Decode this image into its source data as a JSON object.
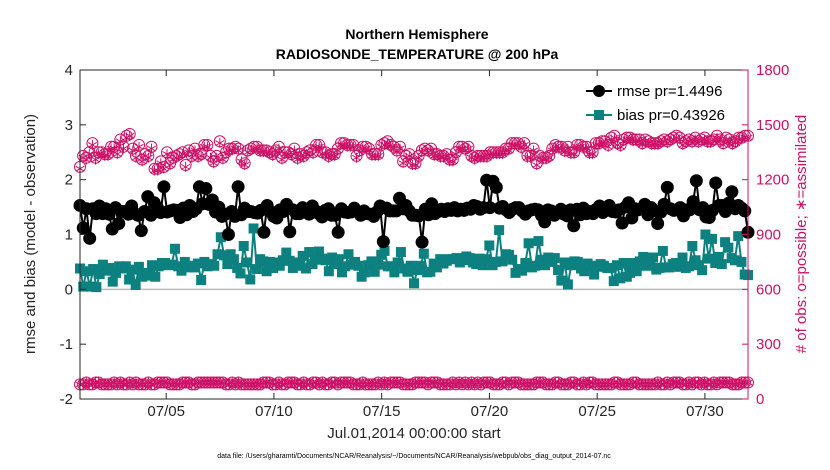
{
  "chart_data": {
    "type": "line",
    "title": "Northern Hemisphere",
    "subtitle": "RADIOSONDE_TEMPERATURE @ 200 hPa",
    "xlabel": "Jul.01,2014 00:00:00 start",
    "ylabel_left": "rmse and bias (model - observation)",
    "ylabel_right": "# of obs: o=possible; ∗=assimilated",
    "footnote": "data file: /Users/gharamti/Documents/NCAR/Reanalysis/~/Documents/NCAR/Reanalysis/webpub/obs_diag_output_2014-07.nc",
    "x_range": [
      1,
      32
    ],
    "xticks": [
      {
        "value": 5,
        "label": "07/05"
      },
      {
        "value": 10,
        "label": "07/10"
      },
      {
        "value": 15,
        "label": "07/15"
      },
      {
        "value": 20,
        "label": "07/20"
      },
      {
        "value": 25,
        "label": "07/25"
      },
      {
        "value": 30,
        "label": "07/30"
      }
    ],
    "ylim_left": [
      -2,
      4
    ],
    "yticks_left": [
      "-2",
      "-1",
      "0",
      "1",
      "2",
      "3",
      "4"
    ],
    "ylim_right": [
      0,
      1800
    ],
    "yticks_right": [
      "0",
      "300",
      "600",
      "900",
      "1200",
      "1500",
      "1800"
    ],
    "legend": [
      "rmse pr=1.4496",
      "bias pr=0.43926"
    ],
    "colors": {
      "rmse": "#000000",
      "bias": "#0d8080",
      "obs": "#cc1166",
      "zero_line": "#bbbbbb",
      "axis": "#262626"
    },
    "series": [
      {
        "name": "rmse pr=1.4496",
        "values": [
          1.53,
          1.12,
          1.47,
          0.93,
          1.47,
          1.38,
          1.52,
          1.38,
          1.47,
          1.37,
          1.1,
          1.49,
          1.2,
          1.42,
          1.42,
          1.37,
          1.52,
          1.38,
          1.35,
          1.07,
          1.42,
          1.69,
          1.35,
          1.58,
          1.49,
          1.4,
          1.87,
          1.41,
          1.43,
          1.45,
          1.44,
          1.31,
          1.48,
          1.36,
          1.53,
          1.42,
          1.47,
          1.87,
          1.56,
          1.84,
          1.55,
          1.63,
          1.41,
          1.5,
          1.33,
          1.37,
          1.0,
          1.42,
          1.33,
          1.87,
          1.36,
          1.48,
          1.42,
          1.42,
          1.4,
          1.39,
          1.44,
          1.04,
          1.53,
          1.42,
          1.33,
          1.3,
          1.45,
          1.42,
          1.55,
          1.05,
          1.45,
          1.38,
          1.38,
          1.49,
          1.43,
          1.37,
          1.52,
          1.43,
          1.38,
          1.32,
          1.44,
          1.47,
          1.35,
          1.35,
          1.04,
          1.47,
          1.41,
          1.4,
          1.41,
          1.48,
          1.42,
          1.35,
          1.43,
          1.38,
          1.37,
          1.33,
          1.41,
          1.52,
          0.87,
          1.48,
          1.43,
          1.43,
          1.43,
          1.66,
          1.47,
          1.53,
          1.43,
          1.35,
          1.35,
          1.34,
          0.86,
          1.46,
          1.36,
          1.56,
          1.38,
          1.42,
          1.46,
          1.42,
          1.47,
          1.44,
          1.49,
          1.43,
          1.46,
          1.44,
          1.48,
          1.46,
          1.53,
          1.51,
          1.46,
          1.49,
          1.99,
          1.49,
          1.97,
          1.86,
          1.48,
          1.51,
          1.45,
          1.4,
          1.46,
          1.49,
          1.49,
          1.43,
          1.37,
          1.43,
          1.45,
          1.46,
          1.45,
          1.35,
          1.23,
          1.45,
          1.43,
          1.35,
          1.39,
          1.46,
          1.37,
          1.34,
          1.45,
          1.16,
          1.46,
          1.36,
          1.48,
          1.38,
          1.42,
          1.38,
          1.46,
          1.52,
          1.4,
          1.44,
          1.53,
          1.42,
          1.41,
          1.45,
          1.21,
          1.5,
          1.58,
          1.3,
          1.47,
          1.45,
          1.47,
          1.55,
          1.36,
          1.49,
          1.43,
          1.2,
          1.41,
          1.55,
          1.86,
          1.47,
          1.44,
          1.45,
          1.49,
          1.34,
          1.45,
          1.45,
          1.6,
          1.98,
          1.45,
          1.49,
          1.32,
          1.31,
          1.44,
          1.94,
          1.53,
          1.53,
          1.42,
          1.57,
          1.78,
          1.47,
          1.53,
          1.48,
          1.43,
          1.04
        ]
      },
      {
        "name": "bias pr=0.43926",
        "values": [
          0.38,
          0.05,
          0.33,
          0.05,
          0.37,
          0.04,
          0.28,
          0.45,
          0.34,
          0.39,
          0.14,
          0.3,
          0.42,
          0.38,
          0.42,
          0.18,
          0.36,
          0.08,
          0.41,
          0.23,
          0.25,
          0.3,
          0.44,
          0.23,
          0.42,
          0.48,
          0.48,
          0.44,
          0.45,
          0.74,
          0.42,
          0.34,
          0.5,
          0.4,
          0.43,
          0.4,
          0.47,
          0.17,
          0.5,
          0.42,
          0.46,
          0.43,
          0.64,
          0.95,
          0.62,
          0.46,
          0.64,
          0.55,
          0.39,
          0.29,
          0.79,
          0.49,
          0.18,
          1.11,
          0.37,
          0.55,
          0.51,
          0.33,
          0.5,
          0.39,
          0.49,
          0.43,
          0.53,
          0.67,
          0.52,
          0.39,
          0.49,
          0.43,
          0.61,
          0.38,
          0.68,
          0.46,
          0.54,
          0.69,
          0.56,
          0.53,
          0.33,
          0.58,
          0.46,
          0.55,
          0.31,
          0.42,
          0.64,
          0.45,
          0.5,
          0.43,
          0.23,
          0.31,
          0.44,
          0.51,
          0.32,
          0.45,
          0.63,
          0.7,
          0.42,
          0.42,
          0.31,
          0.49,
          0.68,
          0.38,
          0.32,
          0.43,
          0.11,
          0.35,
          0.43,
          0.65,
          0.31,
          0.32,
          0.47,
          0.4,
          0.55,
          0.47,
          0.52,
          0.55,
          0.55,
          0.57,
          0.49,
          0.53,
          0.6,
          0.57,
          0.49,
          0.46,
          0.56,
          0.44,
          0.55,
          0.8,
          0.44,
          0.5,
          1.08,
          0.51,
          0.64,
          0.63,
          0.54,
          0.3,
          0.37,
          0.34,
          0.48,
          0.84,
          0.4,
          0.43,
          0.88,
          0.54,
          0.44,
          0.58,
          0.5,
          0.57,
          0.35,
          0.16,
          0.49,
          0.09,
          0.44,
          0.51,
          0.5,
          0.38,
          0.33,
          0.47,
          0.43,
          0.27,
          0.41,
          0.46,
          0.43,
          0.39,
          0.39,
          0.15,
          0.44,
          0.2,
          0.48,
          0.23,
          0.3,
          0.48,
          0.33,
          0.51,
          0.59,
          0.43,
          0.51,
          0.58,
          0.36,
          0.39,
          0.7,
          0.4,
          0.4,
          0.46,
          0.48,
          0.41,
          0.58,
          0.39,
          0.42,
          0.79,
          0.53,
          0.44,
          0.35,
          1.0,
          0.56,
          0.92,
          0.48,
          0.59,
          0.46,
          0.86,
          0.76,
          0.57,
          0.53,
          0.97,
          0.5,
          0.27,
          0.26
        ]
      }
    ],
    "obs_possible": {
      "upper": [
        1270,
        1330,
        1320,
        1350,
        1400,
        1320,
        1350,
        1350,
        1340,
        1340,
        1380,
        1380,
        1350,
        1420,
        1380,
        1440,
        1450,
        1370,
        1330,
        1390,
        1310,
        1340,
        1330,
        1380,
        1260,
        1260,
        1300,
        1270,
        1350,
        1290,
        1320,
        1330,
        1340,
        1350,
        1280,
        1360,
        1330,
        1370,
        1330,
        1340,
        1390,
        1390,
        1330,
        1300,
        1330,
        1410,
        1320,
        1350,
        1370,
        1370,
        1380,
        1370,
        1310,
        1290,
        1360,
        1370,
        1380,
        1380,
        1360,
        1360,
        1360,
        1350,
        1340,
        1360,
        1380,
        1320,
        1350,
        1350,
        1340,
        1370,
        1320,
        1340,
        1330,
        1350,
        1360,
        1350,
        1390,
        1390,
        1350,
        1350,
        1330,
        1340,
        1340,
        1370,
        1400,
        1400,
        1390,
        1390,
        1390,
        1330,
        1360,
        1380,
        1380,
        1370,
        1340,
        1340,
        1340,
        1390,
        1400,
        1410,
        1390,
        1380,
        1360,
        1380,
        1300,
        1330,
        1340,
        1290,
        1290,
        1330,
        1360,
        1370,
        1360,
        1370,
        1340,
        1340,
        1330,
        1330,
        1340,
        1310,
        1310,
        1350,
        1380,
        1380,
        1370,
        1380,
        1330,
        1320,
        1330,
        1330,
        1330,
        1330,
        1350,
        1350,
        1350,
        1350,
        1350,
        1370,
        1370,
        1400,
        1400,
        1400,
        1380,
        1400,
        1330,
        1330,
        1370,
        1290,
        1330,
        1320,
        1320,
        1330,
        1370,
        1390,
        1380,
        1380,
        1360,
        1380,
        1350,
        1350,
        1390,
        1390,
        1380,
        1380,
        1350,
        1350,
        1400,
        1400,
        1410,
        1410,
        1390,
        1430,
        1440,
        1400,
        1390,
        1420,
        1430,
        1430,
        1420,
        1420,
        1420,
        1400,
        1420,
        1410,
        1400,
        1400,
        1400,
        1410,
        1420,
        1410,
        1420,
        1430,
        1440,
        1430,
        1400,
        1410,
        1420,
        1410,
        1430,
        1410,
        1420,
        1430,
        1410,
        1410,
        1420,
        1440,
        1420,
        1400,
        1430,
        1420,
        1400,
        1410,
        1430,
        1430,
        1440,
        1440
      ],
      "lower": [
        80,
        80,
        90,
        80,
        80,
        90,
        90,
        80,
        80,
        80,
        80,
        90,
        80,
        90,
        80,
        80,
        90,
        80,
        90,
        80,
        80,
        80,
        90,
        80,
        80,
        90,
        90,
        90,
        90,
        80,
        80,
        80,
        80,
        90,
        90,
        90,
        80,
        80,
        90,
        90,
        90,
        90,
        90,
        90,
        90,
        90,
        90,
        80,
        80,
        90,
        80,
        90,
        80,
        80,
        80,
        80,
        80,
        80,
        80,
        90,
        90,
        90,
        80,
        80,
        90,
        80,
        80,
        90,
        90,
        90,
        80,
        80,
        90,
        80,
        80,
        90,
        90,
        80,
        90,
        80,
        80,
        90,
        90,
        80,
        90,
        90,
        90,
        90,
        80,
        80,
        80,
        90,
        80,
        80,
        80,
        80,
        90,
        80,
        90,
        80,
        90,
        90,
        90,
        90,
        80,
        80,
        80,
        80,
        90,
        90,
        90,
        90,
        80,
        90,
        90,
        90,
        80,
        80,
        80,
        80,
        90,
        80,
        90,
        80,
        90,
        80,
        90,
        80,
        90,
        80,
        90,
        90,
        90,
        80,
        80,
        80,
        90,
        90,
        80,
        90,
        90,
        90,
        80,
        80,
        80,
        80,
        80,
        90,
        90,
        90,
        80,
        80,
        80,
        90,
        90,
        80,
        80,
        80,
        90,
        90,
        80,
        80,
        90,
        80,
        90,
        90,
        80,
        80,
        80,
        80,
        80,
        80,
        90,
        90,
        80,
        80,
        80,
        80,
        90,
        90,
        80,
        80,
        80,
        80,
        80,
        80,
        90,
        80,
        80,
        90,
        80,
        90,
        90,
        90,
        80,
        80,
        90,
        80,
        90,
        90,
        80,
        90,
        80,
        80,
        90,
        80,
        90,
        90,
        90,
        90,
        80,
        80,
        80,
        90,
        90,
        90
      ]
    },
    "obs_assimilated": {
      "upper": [
        1260,
        1320,
        1310,
        1340,
        1390,
        1310,
        1340,
        1340,
        1330,
        1330,
        1370,
        1370,
        1340,
        1410,
        1370,
        1430,
        1440,
        1360,
        1320,
        1380,
        1300,
        1330,
        1320,
        1370,
        1250,
        1250,
        1290,
        1260,
        1340,
        1280,
        1310,
        1320,
        1330,
        1340,
        1270,
        1350,
        1320,
        1360,
        1320,
        1330,
        1380,
        1380,
        1320,
        1290,
        1320,
        1400,
        1310,
        1340,
        1360,
        1360,
        1370,
        1360,
        1300,
        1280,
        1350,
        1360,
        1370,
        1370,
        1350,
        1350,
        1350,
        1340,
        1330,
        1350,
        1370,
        1310,
        1340,
        1340,
        1330,
        1360,
        1310,
        1330,
        1320,
        1340,
        1350,
        1340,
        1380,
        1380,
        1340,
        1340,
        1320,
        1330,
        1330,
        1360,
        1390,
        1390,
        1380,
        1380,
        1380,
        1320,
        1350,
        1370,
        1370,
        1360,
        1330,
        1330,
        1330,
        1380,
        1390,
        1400,
        1380,
        1370,
        1350,
        1370,
        1290,
        1320,
        1330,
        1280,
        1280,
        1320,
        1350,
        1360,
        1350,
        1360,
        1330,
        1330,
        1320,
        1320,
        1330,
        1300,
        1300,
        1340,
        1370,
        1370,
        1360,
        1370,
        1320,
        1310,
        1320,
        1320,
        1320,
        1320,
        1340,
        1340,
        1340,
        1340,
        1340,
        1360,
        1360,
        1390,
        1390,
        1390,
        1370,
        1390,
        1320,
        1320,
        1360,
        1280,
        1320,
        1310,
        1310,
        1320,
        1360,
        1380,
        1370,
        1370,
        1350,
        1370,
        1340,
        1340,
        1380,
        1380,
        1370,
        1370,
        1340,
        1340,
        1390,
        1390,
        1400,
        1400,
        1380,
        1420,
        1430,
        1390,
        1380,
        1410,
        1420,
        1420,
        1410,
        1410,
        1410,
        1390,
        1410,
        1400,
        1390,
        1390,
        1390,
        1400,
        1410,
        1400,
        1410,
        1420,
        1430,
        1420,
        1390,
        1400,
        1410,
        1400,
        1420,
        1400,
        1410,
        1420,
        1400,
        1400,
        1410,
        1430,
        1410,
        1390,
        1420,
        1410,
        1390,
        1400,
        1420,
        1420,
        1430,
        1430
      ],
      "lower": [
        80,
        80,
        90,
        80,
        80,
        90,
        90,
        80,
        80,
        80,
        80,
        90,
        80,
        90,
        80,
        80,
        90,
        80,
        90,
        80,
        80,
        80,
        90,
        80,
        80,
        90,
        90,
        90,
        90,
        80,
        80,
        80,
        80,
        90,
        90,
        90,
        80,
        80,
        90,
        90,
        90,
        90,
        90,
        90,
        90,
        90,
        90,
        80,
        80,
        90,
        80,
        90,
        80,
        80,
        80,
        80,
        80,
        80,
        80,
        90,
        90,
        90,
        80,
        80,
        90,
        80,
        80,
        90,
        90,
        90,
        80,
        80,
        90,
        80,
        80,
        90,
        90,
        80,
        90,
        80,
        80,
        90,
        90,
        80,
        90,
        90,
        90,
        90,
        80,
        80,
        80,
        90,
        80,
        80,
        80,
        80,
        90,
        80,
        90,
        80,
        90,
        90,
        90,
        90,
        80,
        80,
        80,
        80,
        90,
        90,
        90,
        90,
        80,
        90,
        90,
        90,
        80,
        80,
        80,
        80,
        90,
        80,
        90,
        80,
        90,
        80,
        90,
        80,
        90,
        80,
        90,
        90,
        90,
        80,
        80,
        80,
        90,
        90,
        80,
        90,
        90,
        90,
        80,
        80,
        80,
        80,
        80,
        90,
        90,
        90,
        80,
        80,
        80,
        90,
        90,
        80,
        80,
        80,
        90,
        90,
        80,
        80,
        90,
        80,
        90,
        90,
        80,
        80,
        80,
        80,
        80,
        80,
        90,
        90,
        80,
        80,
        80,
        80,
        90,
        90,
        80,
        80,
        80,
        80,
        80,
        80,
        90,
        80,
        80,
        90,
        80,
        90,
        90,
        90,
        80,
        80,
        90,
        80,
        90,
        90,
        80,
        90,
        80,
        80,
        90,
        80,
        90,
        90,
        90,
        90,
        80,
        80,
        80,
        90,
        90,
        90
      ]
    },
    "zero_line": 0,
    "grid": false
  }
}
